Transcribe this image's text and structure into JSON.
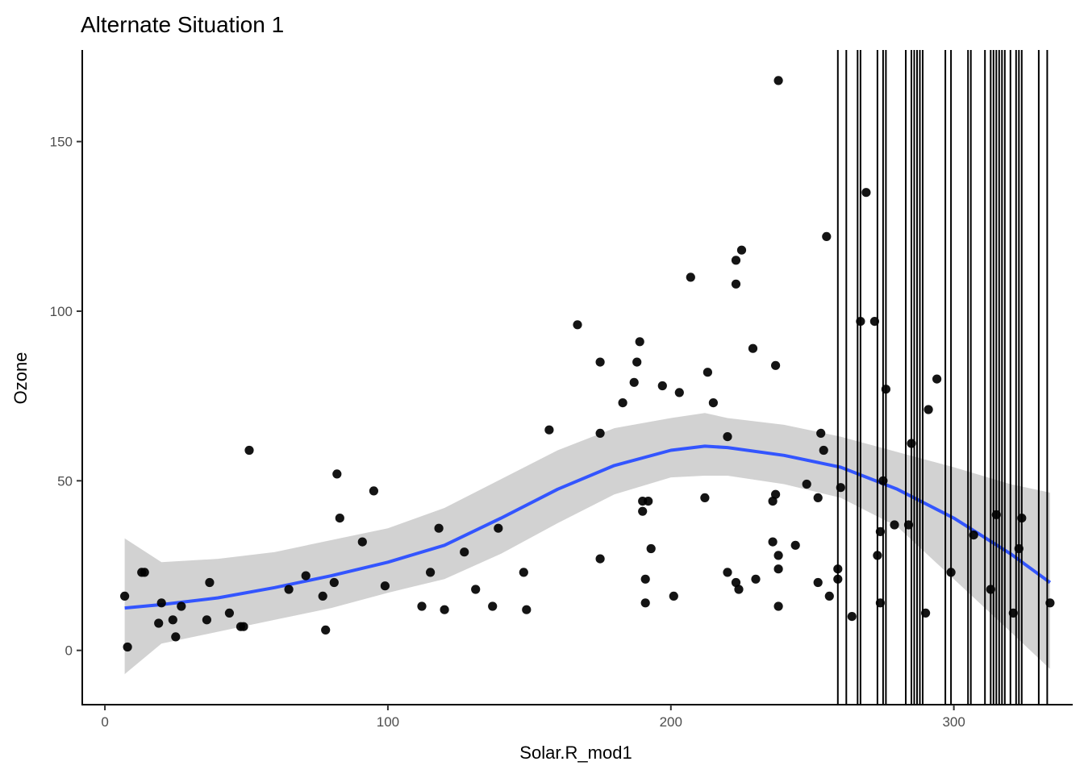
{
  "chart_data": {
    "type": "scatter",
    "title": "Alternate Situation 1",
    "xlabel": "Solar.R_mod1",
    "ylabel": "Ozone",
    "xlim": [
      -8,
      342
    ],
    "ylim": [
      -16,
      177
    ],
    "x_ticks": [
      0,
      100,
      200,
      300
    ],
    "y_ticks": [
      0,
      50,
      100,
      150
    ],
    "grid": false,
    "legend": "none",
    "colors": {
      "points": "#000000",
      "smooth": "#3355ff",
      "band": "#d0d0d0",
      "vlines": "#000000"
    },
    "points": [
      [
        7,
        16
      ],
      [
        8,
        1
      ],
      [
        13,
        23
      ],
      [
        14,
        23
      ],
      [
        19,
        8
      ],
      [
        20,
        14
      ],
      [
        24,
        9
      ],
      [
        25,
        4
      ],
      [
        27,
        13
      ],
      [
        36,
        9
      ],
      [
        37,
        20
      ],
      [
        44,
        11
      ],
      [
        48,
        7
      ],
      [
        49,
        7
      ],
      [
        51,
        59
      ],
      [
        65,
        18
      ],
      [
        71,
        22
      ],
      [
        77,
        16
      ],
      [
        78,
        6
      ],
      [
        81,
        20
      ],
      [
        82,
        52
      ],
      [
        83,
        39
      ],
      [
        91,
        32
      ],
      [
        95,
        47
      ],
      [
        99,
        19
      ],
      [
        112,
        13
      ],
      [
        115,
        23
      ],
      [
        118,
        36
      ],
      [
        120,
        12
      ],
      [
        127,
        29
      ],
      [
        131,
        18
      ],
      [
        137,
        13
      ],
      [
        139,
        36
      ],
      [
        148,
        23
      ],
      [
        149,
        12
      ],
      [
        157,
        65
      ],
      [
        167,
        96
      ],
      [
        175,
        85
      ],
      [
        175,
        64
      ],
      [
        175,
        27
      ],
      [
        183,
        73
      ],
      [
        187,
        79
      ],
      [
        188,
        85
      ],
      [
        189,
        91
      ],
      [
        190,
        44
      ],
      [
        190,
        41
      ],
      [
        191,
        21
      ],
      [
        191,
        14
      ],
      [
        192,
        44
      ],
      [
        193,
        30
      ],
      [
        197,
        78
      ],
      [
        201,
        16
      ],
      [
        203,
        76
      ],
      [
        207,
        110
      ],
      [
        212,
        45
      ],
      [
        213,
        82
      ],
      [
        215,
        73
      ],
      [
        220,
        63
      ],
      [
        220,
        23
      ],
      [
        223,
        115
      ],
      [
        223,
        108
      ],
      [
        223,
        20
      ],
      [
        224,
        18
      ],
      [
        225,
        118
      ],
      [
        229,
        89
      ],
      [
        230,
        21
      ],
      [
        236,
        44
      ],
      [
        236,
        32
      ],
      [
        237,
        84
      ],
      [
        237,
        46
      ],
      [
        238,
        168
      ],
      [
        238,
        28
      ],
      [
        238,
        24
      ],
      [
        238,
        13
      ],
      [
        244,
        31
      ],
      [
        248,
        49
      ],
      [
        252,
        45
      ],
      [
        252,
        20
      ],
      [
        253,
        64
      ],
      [
        254,
        59
      ],
      [
        255,
        122
      ],
      [
        256,
        16
      ],
      [
        259,
        24
      ],
      [
        259,
        21
      ],
      [
        260,
        48
      ],
      [
        264,
        10
      ],
      [
        267,
        97
      ],
      [
        269,
        135
      ],
      [
        272,
        97
      ],
      [
        273,
        28
      ],
      [
        274,
        35
      ],
      [
        274,
        14
      ],
      [
        275,
        50
      ],
      [
        276,
        77
      ],
      [
        279,
        37
      ],
      [
        284,
        37
      ],
      [
        285,
        61
      ],
      [
        290,
        11
      ],
      [
        291,
        71
      ],
      [
        294,
        80
      ],
      [
        299,
        23
      ],
      [
        307,
        34
      ],
      [
        313,
        18
      ],
      [
        315,
        40
      ],
      [
        321,
        11
      ],
      [
        323,
        30
      ],
      [
        324,
        39
      ],
      [
        334,
        14
      ]
    ],
    "smooth_line": [
      [
        7,
        12.5
      ],
      [
        20,
        13.5
      ],
      [
        40,
        15.5
      ],
      [
        60,
        18.5
      ],
      [
        80,
        22
      ],
      [
        100,
        26
      ],
      [
        120,
        31
      ],
      [
        140,
        39
      ],
      [
        160,
        47.5
      ],
      [
        180,
        54.5
      ],
      [
        200,
        59
      ],
      [
        212,
        60.2
      ],
      [
        220,
        59.8
      ],
      [
        240,
        57.5
      ],
      [
        260,
        54
      ],
      [
        280,
        47.5
      ],
      [
        300,
        39
      ],
      [
        320,
        28.5
      ],
      [
        334,
        20
      ]
    ],
    "confidence_band": [
      [
        7,
        -7,
        33
      ],
      [
        20,
        2,
        26
      ],
      [
        40,
        5.5,
        27
      ],
      [
        60,
        9,
        29
      ],
      [
        80,
        12.5,
        32.5
      ],
      [
        100,
        17,
        36
      ],
      [
        120,
        21,
        42
      ],
      [
        140,
        28.5,
        50.5
      ],
      [
        160,
        37.5,
        59
      ],
      [
        180,
        46,
        65.5
      ],
      [
        200,
        51,
        68.5
      ],
      [
        212,
        51.5,
        70
      ],
      [
        220,
        51.5,
        68.5
      ],
      [
        240,
        49,
        66.5
      ],
      [
        260,
        45,
        63
      ],
      [
        280,
        36.5,
        58.5
      ],
      [
        300,
        21,
        54
      ],
      [
        320,
        5.5,
        49
      ],
      [
        334,
        -5.5,
        46.5
      ]
    ],
    "vlines": [
      259,
      262,
      266,
      267,
      273,
      275,
      276,
      283,
      285,
      286,
      287,
      288,
      289,
      297,
      299,
      305,
      306,
      311,
      313,
      314,
      315,
      316,
      317,
      318,
      320,
      322,
      323,
      324,
      330,
      333
    ]
  }
}
